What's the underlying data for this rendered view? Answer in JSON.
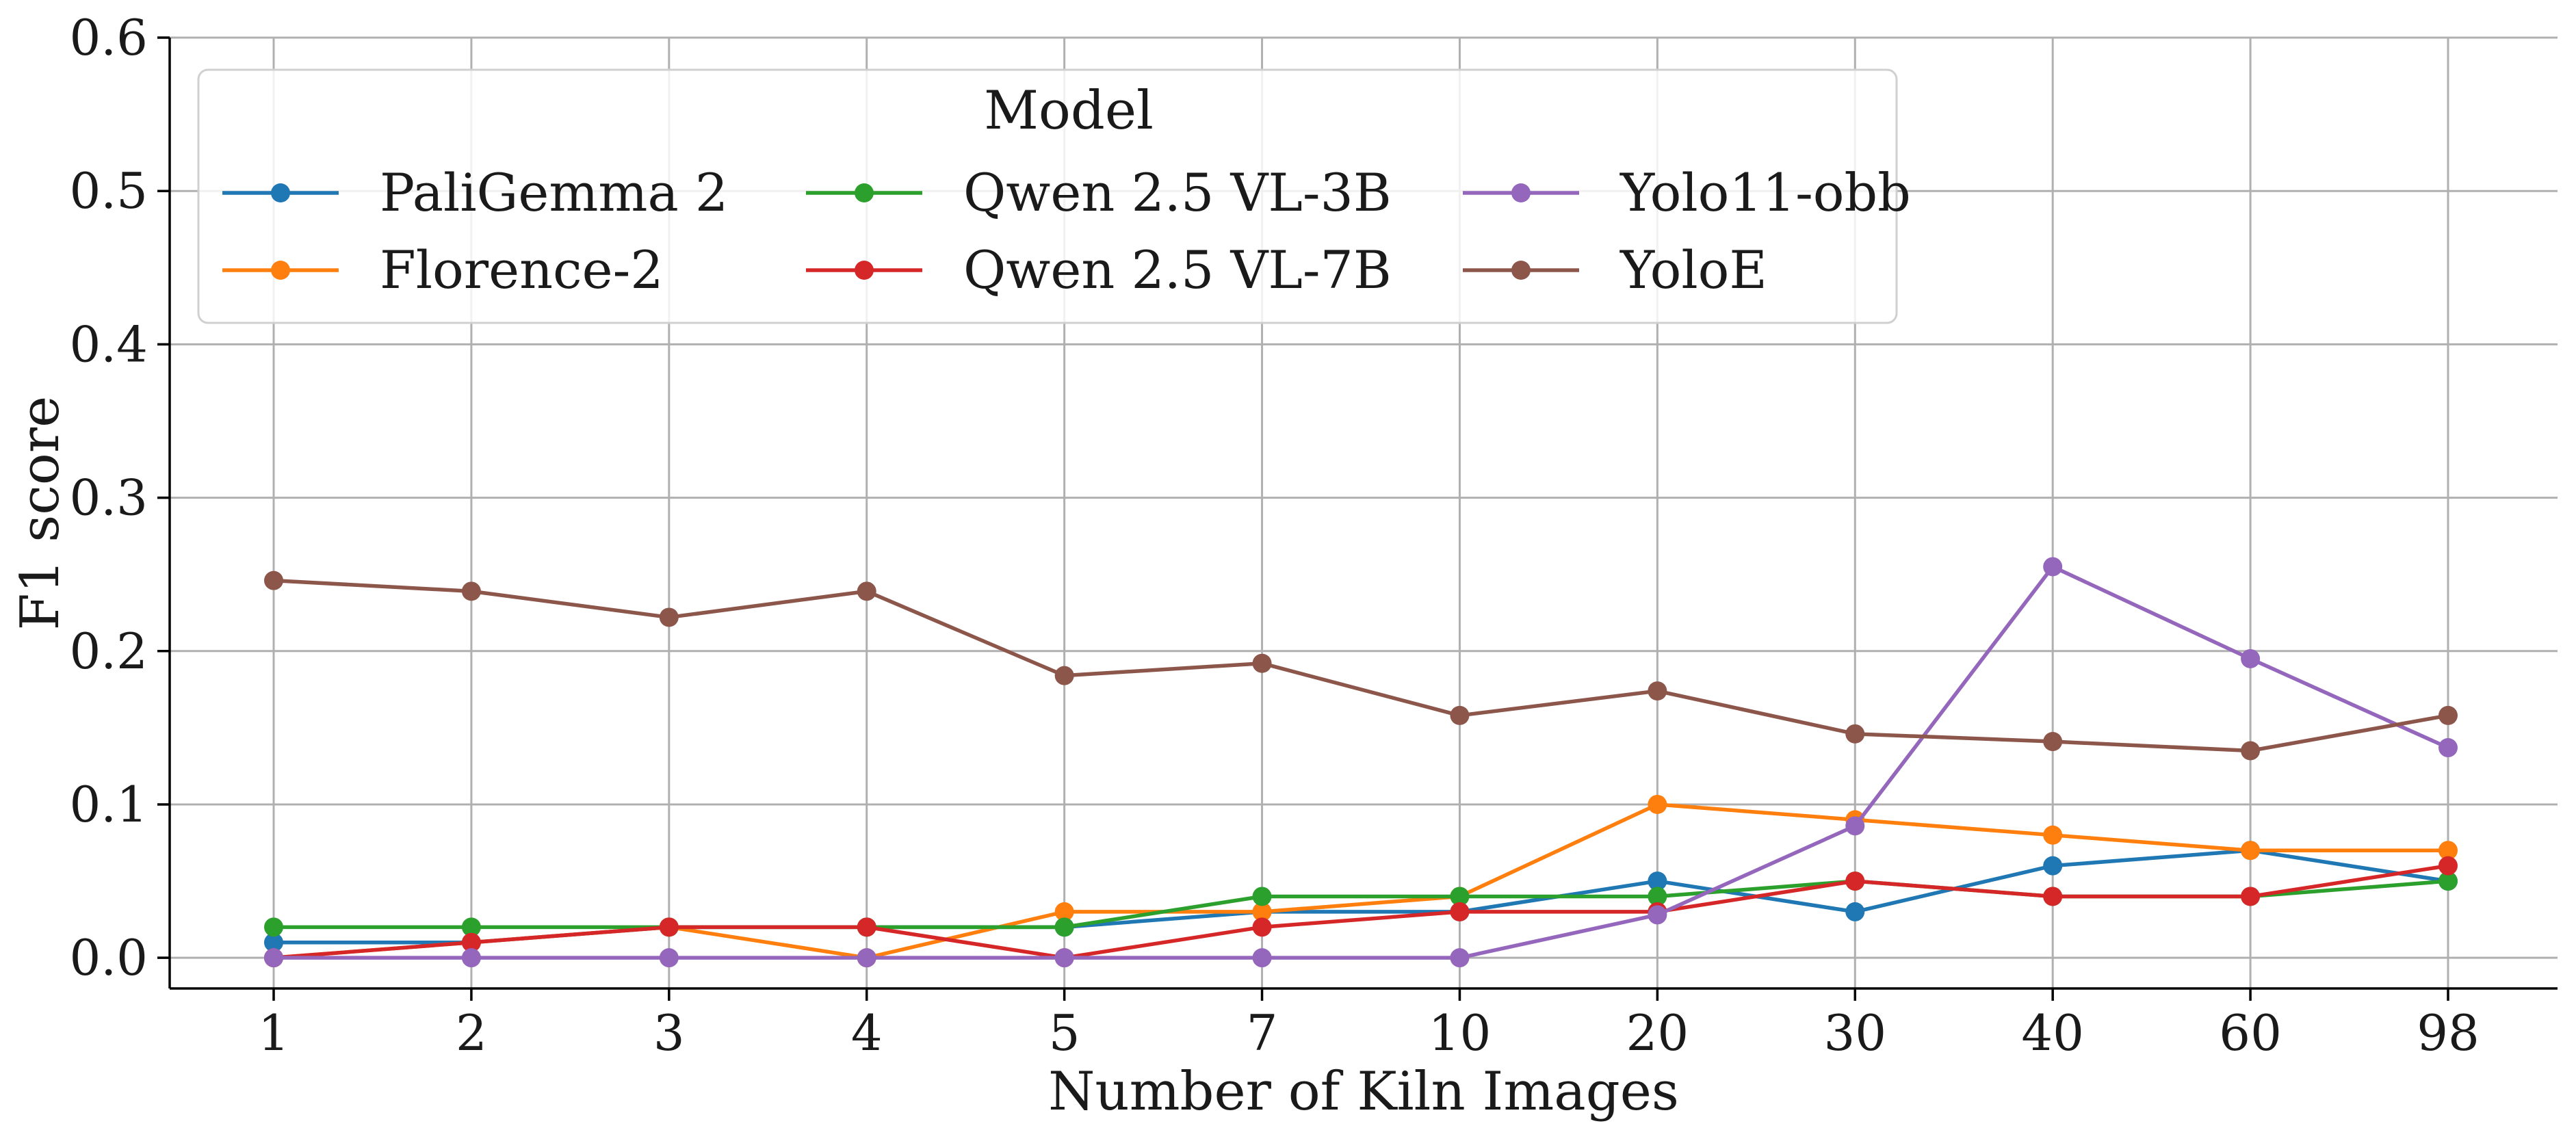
{
  "chart_data": {
    "type": "line",
    "xlabel": "Number of Kiln Images",
    "ylabel": "F1 score",
    "categories": [
      "1",
      "2",
      "3",
      "4",
      "5",
      "7",
      "10",
      "20",
      "30",
      "40",
      "60",
      "98"
    ],
    "yticks": [
      "0.0",
      "0.1",
      "0.2",
      "0.3",
      "0.4",
      "0.5",
      "0.6"
    ],
    "ylim": [
      -0.02,
      0.6
    ],
    "grid": true,
    "legend": {
      "title": "Model",
      "placement": "upper-left",
      "columns": 3
    },
    "series": [
      {
        "name": "PaliGemma 2",
        "color": "#1f77b4",
        "values": [
          0.01,
          0.01,
          0.02,
          0.02,
          0.02,
          0.03,
          0.03,
          0.05,
          0.03,
          0.06,
          0.07,
          0.05
        ]
      },
      {
        "name": "Florence-2",
        "color": "#ff7f0e",
        "values": [
          0.0,
          0.01,
          0.02,
          0.0,
          0.03,
          0.03,
          0.04,
          0.1,
          0.09,
          0.08,
          0.07,
          0.07
        ]
      },
      {
        "name": "Qwen 2.5 VL-3B",
        "color": "#2ca02c",
        "values": [
          0.02,
          0.02,
          0.02,
          0.02,
          0.02,
          0.04,
          0.04,
          0.04,
          0.05,
          0.04,
          0.04,
          0.05
        ]
      },
      {
        "name": "Qwen 2.5 VL-7B",
        "color": "#d62728",
        "values": [
          0.0,
          0.01,
          0.02,
          0.02,
          0.0,
          0.02,
          0.03,
          0.03,
          0.05,
          0.04,
          0.04,
          0.06
        ]
      },
      {
        "name": "Yolo11-obb",
        "color": "#9467bd",
        "values": [
          0.0,
          0.0,
          0.0,
          0.0,
          0.0,
          0.0,
          0.0,
          0.028,
          0.086,
          0.255,
          0.195,
          0.137
        ]
      },
      {
        "name": "YoloE",
        "color": "#8c564b",
        "values": [
          0.246,
          0.239,
          0.222,
          0.239,
          0.184,
          0.192,
          0.158,
          0.174,
          0.146,
          0.141,
          0.135,
          0.158
        ]
      }
    ]
  }
}
